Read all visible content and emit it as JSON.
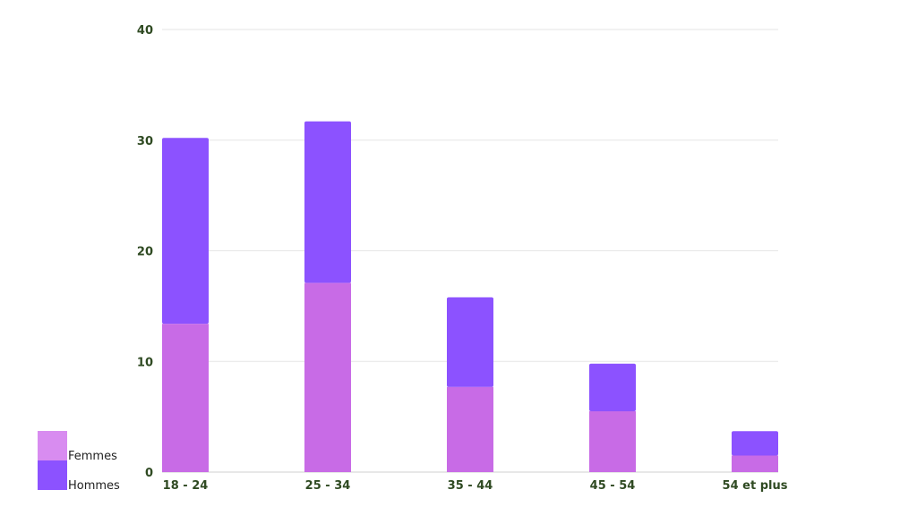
{
  "chart_data": {
    "type": "bar",
    "stacked": true,
    "categories": [
      "18 - 24",
      "25 - 34",
      "35 - 44",
      "45 - 54",
      "54 et plus"
    ],
    "series": [
      {
        "name": "Femmes",
        "color": "#c86be6",
        "values": [
          13.4,
          17.1,
          7.7,
          5.5,
          1.5
        ]
      },
      {
        "name": "Hommes",
        "color": "#8c52ff",
        "values": [
          16.8,
          14.6,
          8.1,
          4.3,
          2.2
        ]
      }
    ],
    "ylim": [
      0,
      40
    ],
    "yticks": [
      0,
      10,
      20,
      30,
      40
    ],
    "grid": true,
    "legend_position": "bottom-left",
    "title": "",
    "xlabel": "",
    "ylabel": ""
  },
  "legend": {
    "items": [
      {
        "label": "Femmes",
        "swatch_color": "#d88cf0"
      },
      {
        "label": "Hommes",
        "swatch_color": "#8c52ff"
      }
    ]
  }
}
